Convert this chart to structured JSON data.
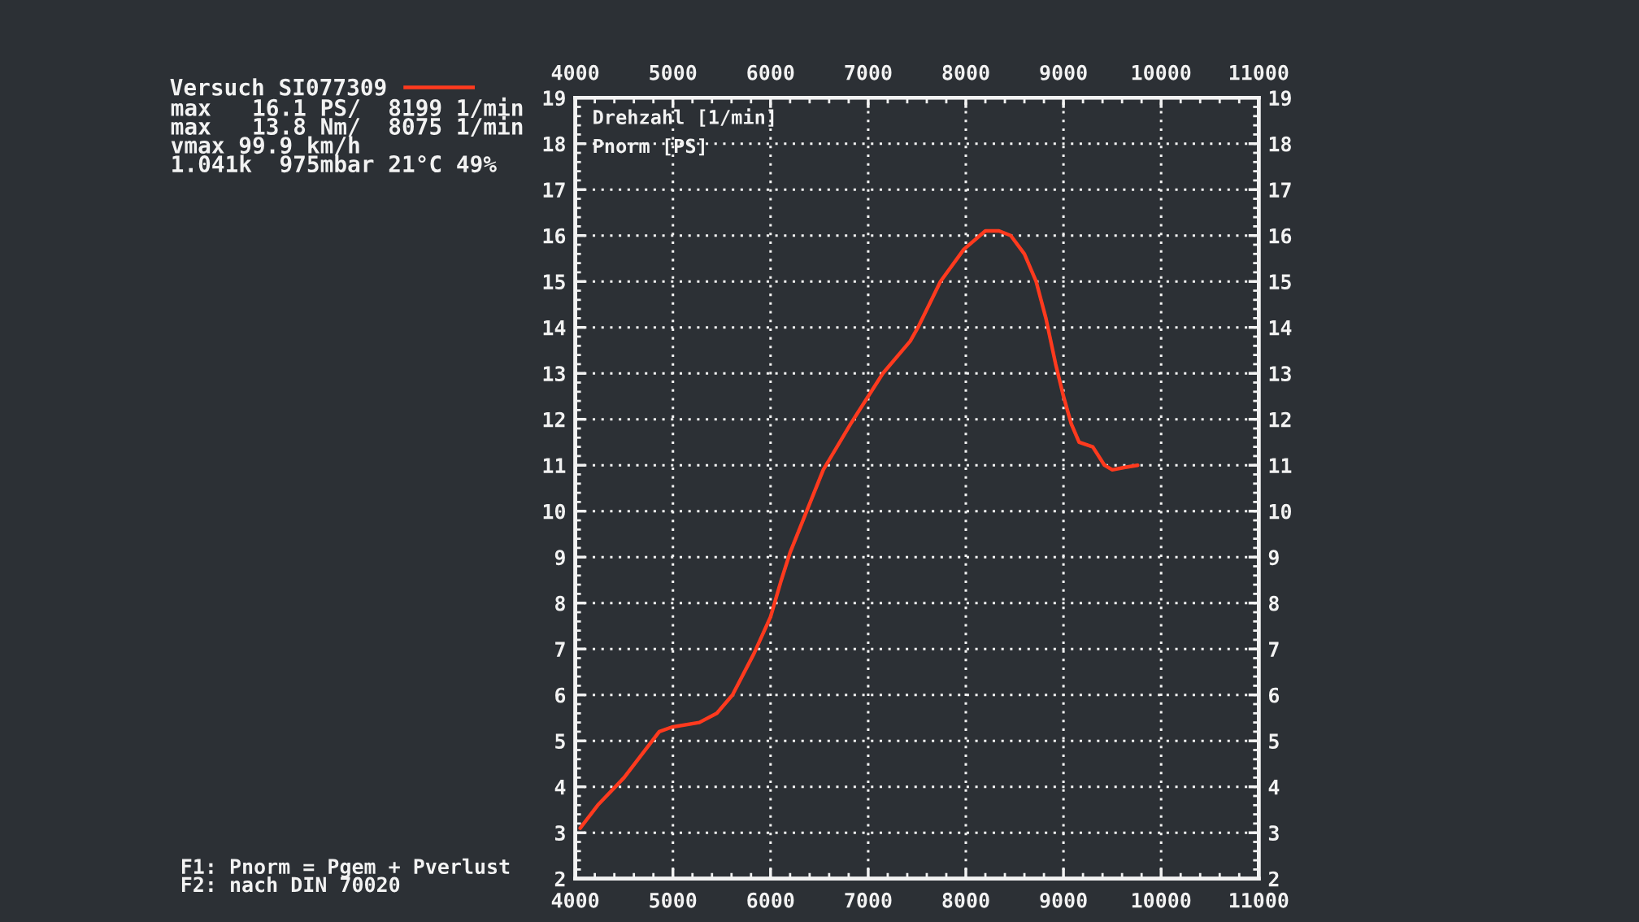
{
  "chart_data": {
    "type": "line",
    "xlabel": "Drehzahl [1/min]",
    "ylabel": "Pnorm [PS]",
    "annotations": [
      "max   16.1 PS/  8199 1/min\nmax   13.8 Nm/  8075 1/min\nvmax 99.9 km/h\n1.041k  975mbar 21°C 49%",
      "F1: Pnorm = Pgem + Pverlust\nF2: nach DIN 70020"
    ],
    "x": [
      4050,
      4230,
      4500,
      4680,
      4860,
      4990,
      5270,
      5450,
      5610,
      5830,
      6000,
      6110,
      6200,
      6370,
      6540,
      6820,
      7150,
      7430,
      7510,
      7740,
      7980,
      8200,
      8340,
      8460,
      8600,
      8720,
      8820,
      8920,
      9000,
      9080,
      9160,
      9300,
      9420,
      9500,
      9620,
      9760
    ],
    "series": [
      {
        "name": "Versuch SI077309",
        "color": "#ff3a1e",
        "values": [
          3.1,
          3.6,
          4.2,
          4.7,
          5.2,
          5.3,
          5.4,
          5.6,
          6.0,
          6.9,
          7.7,
          8.5,
          9.1,
          10.0,
          10.9,
          11.9,
          13.0,
          13.7,
          14.0,
          15.0,
          15.7,
          16.1,
          16.1,
          16.0,
          15.6,
          15.0,
          14.2,
          13.2,
          12.5,
          11.9,
          11.5,
          11.4,
          11.0,
          10.9,
          10.95,
          11.0
        ]
      }
    ],
    "xlim": [
      4000,
      11000
    ],
    "xticks": [
      4000,
      5000,
      6000,
      7000,
      8000,
      9000,
      10000,
      11000
    ],
    "x2lim": [
      4000,
      11000
    ],
    "x2ticks": [
      4000,
      5000,
      6000,
      7000,
      8000,
      9000,
      10000,
      11000
    ],
    "ylim": [
      2,
      19
    ],
    "yticks": [
      2,
      3,
      4,
      5,
      6,
      7,
      8,
      9,
      10,
      11,
      12,
      13,
      14,
      15,
      16,
      17,
      18,
      19
    ],
    "y2lim": [
      2,
      19
    ],
    "y2ticks": [
      2,
      3,
      4,
      5,
      6,
      7,
      8,
      9,
      10,
      11,
      12,
      13,
      14,
      15,
      16,
      17,
      18,
      19
    ],
    "grid": true,
    "legend": "top left",
    "line_style": "solid"
  }
}
